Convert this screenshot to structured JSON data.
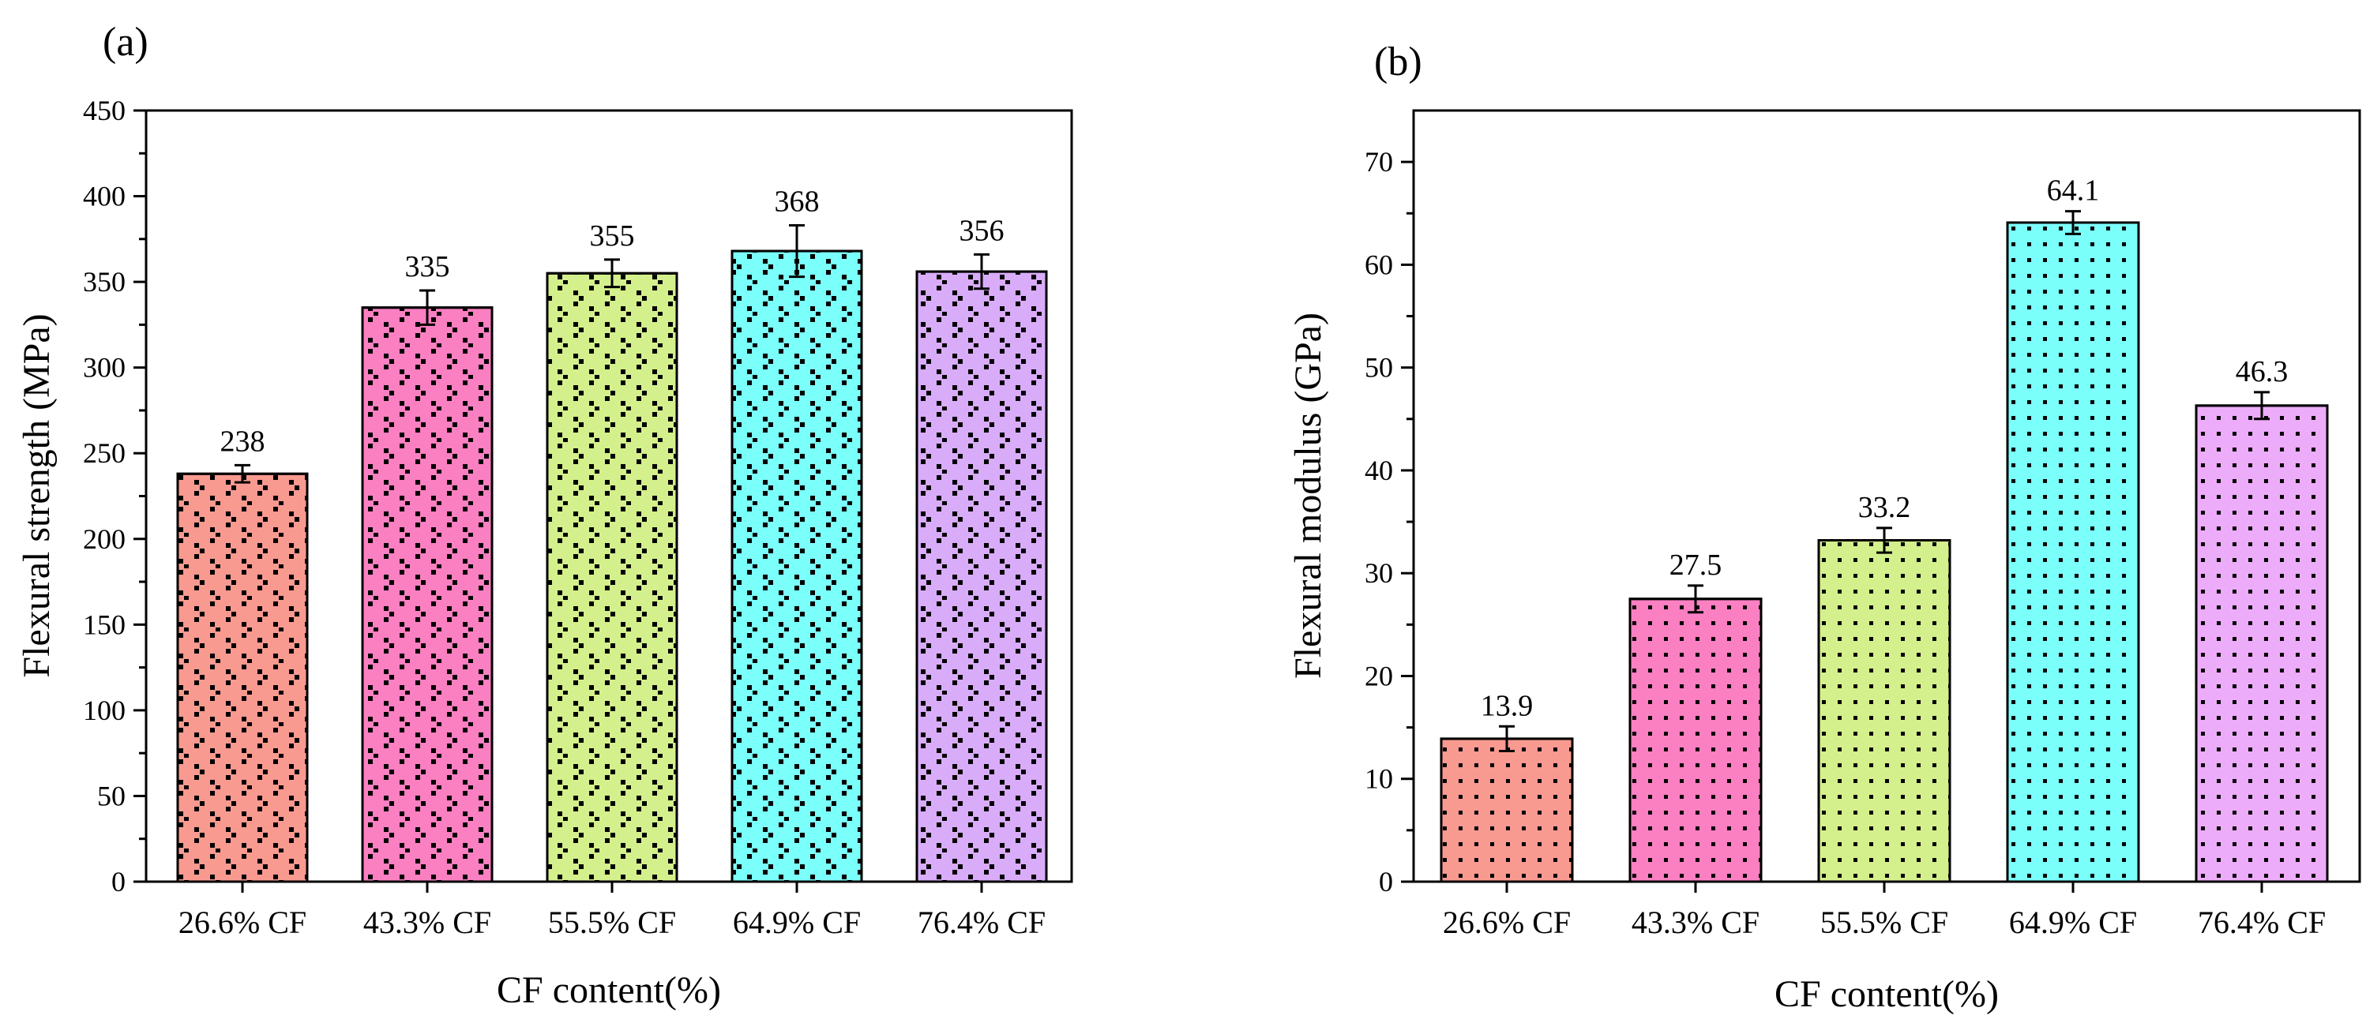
{
  "chart_data": [
    {
      "type": "bar",
      "panel_label": "(a)",
      "categories": [
        "26.6% CF",
        "43.3% CF",
        "55.5% CF",
        "64.9% CF",
        "76.4% CF"
      ],
      "values": [
        238,
        335,
        355,
        368,
        356
      ],
      "value_labels": [
        "238",
        "335",
        "355",
        "368",
        "356"
      ],
      "errors": [
        5,
        10,
        8,
        15,
        10
      ],
      "xlabel": "CF content(%)",
      "ylabel": "Flexural strength (MPa)",
      "ylim": [
        0,
        450
      ],
      "yticks": [
        0,
        50,
        100,
        150,
        200,
        250,
        300,
        350,
        400,
        450
      ],
      "ytick_labels": [
        "0",
        "50",
        "100",
        "150",
        "200",
        "250",
        "300",
        "350",
        "400",
        "450"
      ],
      "colors": [
        "#f99a90",
        "#fb80c2",
        "#d4f08c",
        "#7bfffb",
        "#d9acf9"
      ],
      "pattern": "checker-dots",
      "grid": false
    },
    {
      "type": "bar",
      "panel_label": "(b)",
      "categories": [
        "26.6% CF",
        "43.3% CF",
        "55.5% CF",
        "64.9% CF",
        "76.4% CF"
      ],
      "values": [
        13.9,
        27.5,
        33.2,
        64.1,
        46.3
      ],
      "value_labels": [
        "13.9",
        "27.5",
        "33.2",
        "64.1",
        "46.3"
      ],
      "errors": [
        1.2,
        1.3,
        1.2,
        1.1,
        1.3
      ],
      "xlabel": "CF content(%)",
      "ylabel": "Flexural modulus (GPa)",
      "ylim": [
        0,
        75
      ],
      "yticks": [
        0,
        10,
        20,
        30,
        40,
        50,
        60,
        70
      ],
      "ytick_labels": [
        "0",
        "10",
        "20",
        "30",
        "40",
        "50",
        "60",
        "70"
      ],
      "colors": [
        "#f99a90",
        "#fb80c2",
        "#d4f08c",
        "#7bfffb",
        "#edacf9"
      ],
      "pattern": "square-dots",
      "grid": false
    }
  ]
}
